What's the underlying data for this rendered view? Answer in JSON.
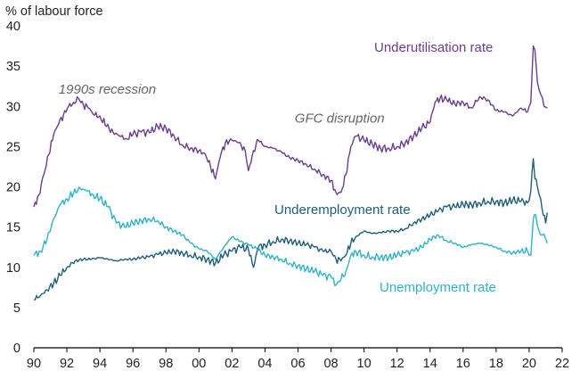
{
  "chart_data": {
    "type": "line",
    "ylabel": "% of labour force",
    "ylim": [
      0,
      40
    ],
    "yticks": [
      0,
      5,
      10,
      15,
      20,
      25,
      30,
      35,
      40
    ],
    "xlim": [
      1990,
      2022
    ],
    "xticks": [
      1990,
      1992,
      1994,
      1996,
      1998,
      2000,
      2002,
      2004,
      2006,
      2008,
      2010,
      2012,
      2014,
      2016,
      2018,
      2020,
      2022
    ],
    "xtick_labels": [
      "90",
      "92",
      "94",
      "96",
      "98",
      "00",
      "02",
      "04",
      "06",
      "08",
      "10",
      "12",
      "14",
      "16",
      "18",
      "20",
      "22"
    ],
    "grid": false,
    "series": [
      {
        "name": "Underutilisation rate",
        "color": "#6b3d8f",
        "x": [
          1990.0,
          1990.3,
          1990.6,
          1990.9,
          1991.2,
          1991.5,
          1991.8,
          1992.1,
          1992.4,
          1992.7,
          1993.0,
          1993.3,
          1993.6,
          1994.0,
          1994.4,
          1994.8,
          1995.2,
          1995.6,
          1996.0,
          1996.5,
          1997.0,
          1997.5,
          1998.0,
          1998.5,
          1999.0,
          1999.5,
          2000.0,
          2000.4,
          2000.7,
          2001.0,
          2001.3,
          2001.6,
          2002.0,
          2002.4,
          2002.8,
          2003.0,
          2003.3,
          2003.6,
          2004.0,
          2004.5,
          2005.0,
          2005.5,
          2006.0,
          2006.5,
          2007.0,
          2007.5,
          2008.0,
          2008.3,
          2008.6,
          2008.9,
          2009.2,
          2009.5,
          2010.0,
          2010.5,
          2011.0,
          2011.5,
          2012.0,
          2012.5,
          2013.0,
          2013.5,
          2014.0,
          2014.3,
          2014.6,
          2015.0,
          2015.5,
          2016.0,
          2016.5,
          2017.0,
          2017.5,
          2018.0,
          2018.5,
          2019.0,
          2019.5,
          2019.9,
          2020.1,
          2020.25,
          2020.35,
          2020.5,
          2020.7,
          2020.9,
          2021.1
        ],
        "values": [
          17.5,
          19.0,
          21.5,
          24.0,
          26.5,
          27.8,
          29.0,
          30.0,
          30.5,
          31.0,
          30.2,
          29.8,
          29.0,
          28.8,
          27.5,
          26.8,
          26.3,
          26.0,
          26.5,
          26.8,
          26.7,
          27.5,
          27.3,
          26.3,
          25.2,
          24.8,
          24.5,
          24.0,
          22.5,
          21.0,
          23.8,
          25.5,
          25.8,
          25.5,
          24.5,
          22.0,
          24.5,
          25.8,
          25.0,
          24.8,
          24.3,
          23.6,
          23.3,
          22.8,
          22.2,
          21.5,
          20.8,
          19.3,
          19.3,
          21.5,
          25.0,
          26.3,
          25.8,
          25.3,
          24.8,
          24.8,
          25.0,
          25.5,
          26.3,
          27.3,
          28.0,
          30.5,
          31.0,
          30.8,
          30.3,
          30.5,
          29.8,
          31.2,
          30.8,
          29.5,
          29.3,
          28.8,
          29.8,
          29.3,
          30.5,
          37.5,
          37.0,
          33.0,
          31.5,
          30.0,
          29.8
        ]
      },
      {
        "name": "Underemployment rate",
        "color": "#1f5f7a",
        "x": [
          1990.0,
          1990.4,
          1990.8,
          1991.2,
          1991.6,
          1992.0,
          1992.5,
          1993.0,
          1993.5,
          1994.0,
          1994.5,
          1995.0,
          1995.5,
          1996.0,
          1996.5,
          1997.0,
          1997.5,
          1998.0,
          1998.5,
          1999.0,
          1999.5,
          2000.0,
          2000.5,
          2001.0,
          2001.5,
          2002.0,
          2002.5,
          2003.0,
          2003.3,
          2003.6,
          2004.0,
          2004.5,
          2005.0,
          2005.5,
          2006.0,
          2006.5,
          2007.0,
          2007.5,
          2008.0,
          2008.3,
          2008.6,
          2008.9,
          2009.2,
          2009.5,
          2010.0,
          2010.5,
          2011.0,
          2011.5,
          2012.0,
          2012.5,
          2013.0,
          2013.5,
          2014.0,
          2014.5,
          2015.0,
          2015.5,
          2016.0,
          2016.5,
          2017.0,
          2017.5,
          2018.0,
          2018.5,
          2019.0,
          2019.5,
          2019.9,
          2020.1,
          2020.25,
          2020.35,
          2020.5,
          2020.7,
          2020.85,
          2021.0,
          2021.1
        ],
        "values": [
          6.0,
          6.5,
          7.2,
          8.0,
          9.0,
          10.0,
          10.8,
          11.0,
          11.0,
          11.2,
          11.0,
          10.8,
          11.0,
          11.0,
          11.2,
          11.3,
          11.6,
          11.8,
          12.0,
          11.8,
          11.5,
          11.3,
          11.0,
          10.5,
          11.5,
          12.0,
          12.5,
          12.2,
          10.0,
          12.5,
          12.8,
          13.2,
          13.5,
          13.3,
          13.0,
          12.8,
          12.5,
          12.0,
          12.0,
          11.0,
          10.8,
          11.5,
          13.0,
          13.8,
          14.5,
          14.2,
          14.3,
          14.5,
          14.5,
          14.8,
          15.5,
          16.0,
          16.5,
          17.0,
          17.5,
          17.5,
          17.8,
          17.8,
          18.0,
          18.2,
          18.2,
          18.0,
          18.3,
          18.2,
          18.0,
          19.5,
          23.5,
          21.0,
          20.0,
          18.5,
          16.5,
          15.5,
          16.8
        ]
      },
      {
        "name": "Unemployment rate",
        "color": "#2fb3c9",
        "x": [
          1990.0,
          1990.4,
          1990.8,
          1991.2,
          1991.6,
          1992.0,
          1992.4,
          1992.8,
          1993.2,
          1993.6,
          1994.0,
          1994.5,
          1995.0,
          1995.5,
          1996.0,
          1996.5,
          1997.0,
          1997.5,
          1998.0,
          1998.5,
          1999.0,
          1999.5,
          2000.0,
          2000.5,
          2001.0,
          2001.5,
          2002.0,
          2002.5,
          2003.0,
          2003.5,
          2004.0,
          2004.5,
          2005.0,
          2005.5,
          2006.0,
          2006.5,
          2007.0,
          2007.5,
          2008.0,
          2008.3,
          2008.6,
          2008.9,
          2009.2,
          2009.5,
          2010.0,
          2010.5,
          2011.0,
          2011.5,
          2012.0,
          2012.5,
          2013.0,
          2013.5,
          2014.0,
          2014.5,
          2015.0,
          2015.5,
          2016.0,
          2016.5,
          2017.0,
          2017.5,
          2018.0,
          2018.5,
          2019.0,
          2019.5,
          2019.9,
          2020.1,
          2020.25,
          2020.4,
          2020.6,
          2020.8,
          2021.0,
          2021.1
        ],
        "values": [
          11.5,
          12.0,
          13.5,
          16.0,
          17.8,
          18.5,
          19.2,
          19.8,
          19.5,
          19.0,
          18.5,
          17.5,
          15.5,
          15.0,
          15.5,
          15.8,
          16.0,
          15.8,
          15.0,
          14.5,
          14.0,
          13.0,
          12.3,
          12.0,
          11.0,
          12.5,
          13.8,
          13.2,
          12.8,
          12.3,
          11.5,
          11.3,
          11.0,
          10.5,
          10.2,
          9.8,
          9.5,
          9.0,
          8.8,
          7.8,
          8.5,
          9.5,
          11.5,
          12.0,
          11.5,
          11.3,
          11.3,
          11.2,
          11.5,
          11.8,
          12.0,
          12.5,
          13.5,
          14.0,
          13.3,
          13.0,
          12.5,
          12.8,
          13.0,
          12.8,
          12.5,
          12.0,
          11.8,
          12.0,
          12.0,
          11.5,
          16.0,
          16.5,
          14.5,
          14.0,
          13.5,
          13.0
        ]
      }
    ],
    "annotations": [
      {
        "text": "1990s recession",
        "x": 1991.5,
        "y": 31.6,
        "style": "italic"
      },
      {
        "text": "GFC disruption",
        "x": 2005.8,
        "y": 28.0,
        "style": "italic"
      }
    ]
  }
}
